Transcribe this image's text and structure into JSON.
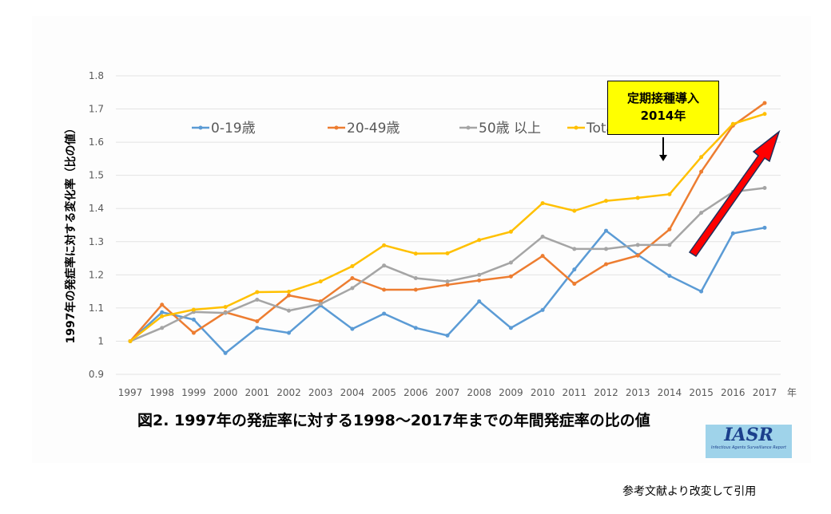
{
  "chart_data": {
    "type": "line",
    "title": "図2. 1997年の発症率に対する1998〜2017年までの年間発症率の比の値",
    "xlabel": "年",
    "ylabel": "1997年の発症率に対する変化率（比の値）",
    "ylim": [
      0.9,
      1.8
    ],
    "yticks": [
      "0.9",
      "1",
      "1.1",
      "1.2",
      "1.3",
      "1.4",
      "1.5",
      "1.6",
      "1.7",
      "1.8"
    ],
    "grid": true,
    "legend_position": "top-left",
    "x": [
      "1997",
      "1998",
      "1999",
      "2000",
      "2001",
      "2002",
      "2003",
      "2004",
      "2005",
      "2006",
      "2007",
      "2008",
      "2009",
      "2010",
      "2011",
      "2012",
      "2013",
      "2014",
      "2015",
      "2016",
      "2017"
    ],
    "series": [
      {
        "name": "0-19歳",
        "color": "#5b9bd5",
        "values": [
          1.0,
          1.087,
          1.065,
          0.964,
          1.04,
          1.025,
          1.108,
          1.037,
          1.083,
          1.04,
          1.017,
          1.12,
          1.04,
          1.094,
          1.216,
          1.333,
          1.26,
          1.197,
          1.15,
          1.325,
          1.342
        ]
      },
      {
        "name": "20-49歳",
        "color": "#ed7d31",
        "values": [
          1.0,
          1.11,
          1.025,
          1.087,
          1.06,
          1.138,
          1.12,
          1.19,
          1.155,
          1.155,
          1.17,
          1.183,
          1.195,
          1.257,
          1.173,
          1.232,
          1.258,
          1.337,
          1.511,
          1.65,
          1.718
        ]
      },
      {
        "name": "50歳 以上",
        "color": "#a5a5a5",
        "values": [
          1.0,
          1.04,
          1.088,
          1.085,
          1.125,
          1.092,
          1.112,
          1.16,
          1.228,
          1.19,
          1.18,
          1.2,
          1.237,
          1.315,
          1.278,
          1.278,
          1.29,
          1.29,
          1.387,
          1.45,
          1.462
        ]
      },
      {
        "name": "Total",
        "color": "#ffc000",
        "values": [
          1.0,
          1.075,
          1.095,
          1.103,
          1.148,
          1.149,
          1.18,
          1.226,
          1.289,
          1.264,
          1.265,
          1.305,
          1.33,
          1.416,
          1.393,
          1.423,
          1.432,
          1.443,
          1.555,
          1.655,
          1.685
        ]
      }
    ],
    "annotation": {
      "line1": "定期接種導入",
      "line2": "2014年"
    }
  },
  "logo": {
    "text": "IASR",
    "subtitle": "Infectious Agents Surveillance Report"
  },
  "source_note": "参考文献より改変して引用"
}
